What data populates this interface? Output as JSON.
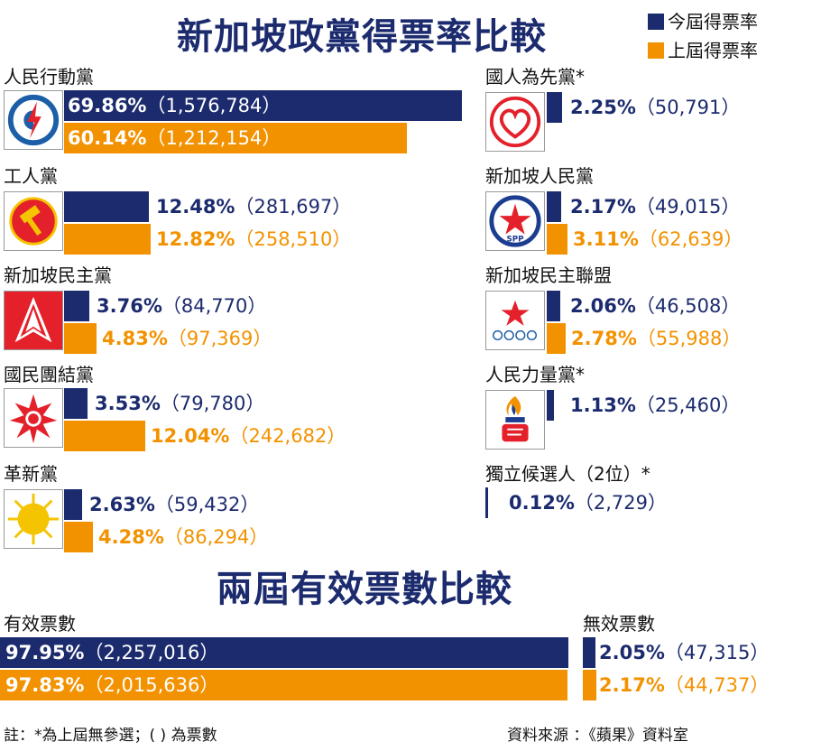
{
  "title_main": "新加坡政黨得票率比較",
  "title_second": "兩屆有效票數比較",
  "legend": [
    {
      "label": "今屆得票率",
      "color": "#1c2b6e"
    },
    {
      "label": "上屆得票率",
      "color": "#f39200"
    }
  ],
  "colors": {
    "current": "#1c2b6e",
    "previous": "#f39200"
  },
  "chart_data": [
    {
      "type": "bar",
      "title": "新加坡政黨得票率比較",
      "series_names": [
        "今屆得票率",
        "上屆得票率"
      ],
      "parties": [
        {
          "name": "人民行動黨",
          "logo": "lightning-logo-icon",
          "current": {
            "pct": 69.86,
            "label": "69.86%",
            "count": "（1,576,784）"
          },
          "previous": {
            "pct": 60.14,
            "label": "60.14%",
            "count": "（1,212,154）"
          }
        },
        {
          "name": "工人黨",
          "logo": "hammer-logo-icon",
          "current": {
            "pct": 12.48,
            "label": "12.48%",
            "count": "（281,697）"
          },
          "previous": {
            "pct": 12.82,
            "label": "12.82%",
            "count": "（258,510）"
          }
        },
        {
          "name": "新加坡民主黨",
          "logo": "arrowhead-logo-icon",
          "current": {
            "pct": 3.76,
            "label": "3.76%",
            "count": "（84,770）"
          },
          "previous": {
            "pct": 4.83,
            "label": "4.83%",
            "count": "（97,369）"
          }
        },
        {
          "name": "國民團結黨",
          "logo": "red-star-burst-logo-icon",
          "current": {
            "pct": 3.53,
            "label": "3.53%",
            "count": "（79,780）"
          },
          "previous": {
            "pct": 12.04,
            "label": "12.04%",
            "count": "（242,682）"
          }
        },
        {
          "name": "革新黨",
          "logo": "sun-logo-icon",
          "current": {
            "pct": 2.63,
            "label": "2.63%",
            "count": "（59,432）"
          },
          "previous": {
            "pct": 4.28,
            "label": "4.28%",
            "count": "（86,294）"
          }
        },
        {
          "name": "國人為先黨*",
          "logo": "heart-logo-icon",
          "current": {
            "pct": 2.25,
            "label": "2.25%",
            "count": "（50,791）"
          },
          "previous": null
        },
        {
          "name": "新加坡人民黨",
          "logo": "spp-star-logo-icon",
          "current": {
            "pct": 2.17,
            "label": "2.17%",
            "count": "（49,015）"
          },
          "previous": {
            "pct": 3.11,
            "label": "3.11%",
            "count": "（62,639）"
          }
        },
        {
          "name": "新加坡民主聯盟",
          "logo": "star-rings-logo-icon",
          "current": {
            "pct": 2.06,
            "label": "2.06%",
            "count": "（46,508）"
          },
          "previous": {
            "pct": 2.78,
            "label": "2.78%",
            "count": "（55,988）"
          }
        },
        {
          "name": "人民力量黨*",
          "logo": "torch-fist-logo-icon",
          "current": {
            "pct": 1.13,
            "label": "1.13%",
            "count": "（25,460）"
          },
          "previous": null
        },
        {
          "name": "獨立候選人（2位）*",
          "logo": null,
          "current": {
            "pct": 0.12,
            "label": "0.12%",
            "count": "（2,729）"
          },
          "previous": null
        }
      ]
    },
    {
      "type": "bar",
      "title": "兩屆有效票數比較",
      "groups": [
        {
          "name": "有效票數",
          "current": {
            "pct": 97.95,
            "label": "97.95%",
            "count": "（2,257,016）"
          },
          "previous": {
            "pct": 97.83,
            "label": "97.83%",
            "count": "（2,015,636）"
          }
        },
        {
          "name": "無效票數",
          "current": {
            "pct": 2.05,
            "label": "2.05%",
            "count": "（47,315）"
          },
          "previous": {
            "pct": 2.17,
            "label": "2.17%",
            "count": "（44,737）"
          }
        }
      ]
    }
  ],
  "footnote": "註：*為上屆無參選；( ) 為票數",
  "source": "資料來源 ：《蘋果》資料室",
  "spp_logo_text": "SPP"
}
